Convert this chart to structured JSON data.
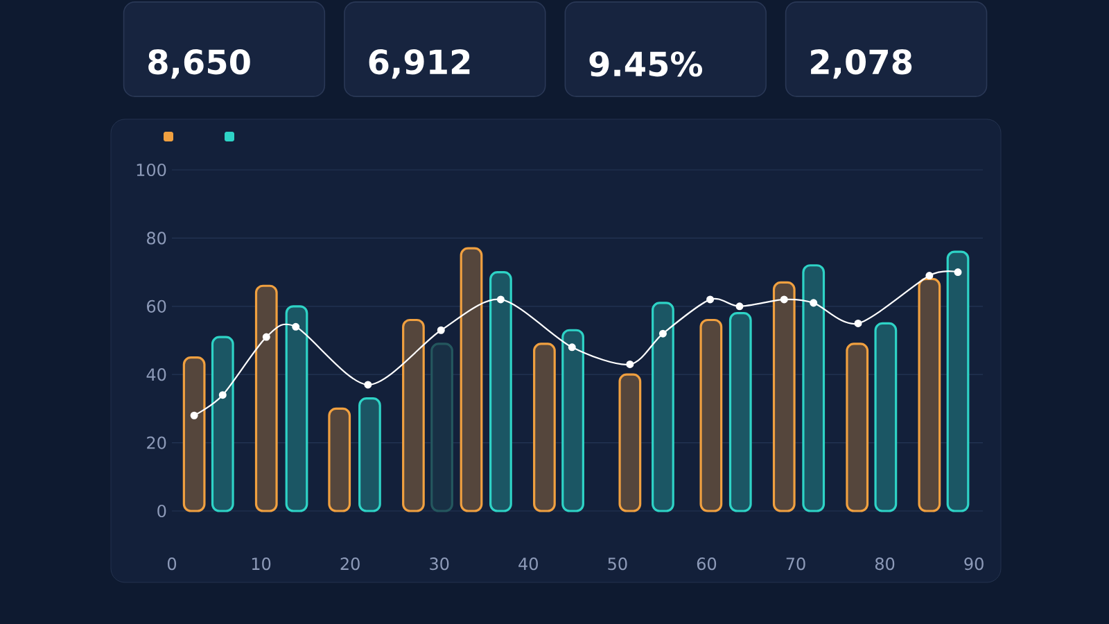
{
  "chart_data": [
    {
      "type": "other",
      "annotations": [
        "8,650",
        "6,912",
        "9.45%",
        "2,078"
      ]
    },
    {
      "type": "bar",
      "xlim": [
        0,
        91
      ],
      "ylim": [
        0,
        100
      ],
      "xticks": [
        0,
        10,
        20,
        30,
        40,
        50,
        60,
        70,
        80,
        90
      ],
      "yticks": [
        0,
        20,
        40,
        60,
        80,
        100
      ],
      "grid": "y",
      "series": [
        {
          "type": "bar",
          "color": "#f0a040",
          "x": [
            2.5,
            10.6,
            18.8,
            27.1,
            33.6,
            41.8,
            51.4,
            60.5,
            68.7,
            76.9,
            85.0
          ],
          "values": [
            45,
            66,
            30,
            56,
            77,
            49,
            40,
            56,
            67,
            49,
            68
          ]
        },
        {
          "type": "bar",
          "colors": [
            "#2ed3c6",
            "#2ed3c6",
            "#2ed3c6",
            "#24575e",
            "#2ed3c6",
            "#2ed3c6",
            "#2ed3c6",
            "#2ed3c6",
            "#2ed3c6",
            "#2ed3c6",
            "#2ed3c6"
          ],
          "x": [
            5.7,
            14.0,
            22.2,
            30.3,
            36.9,
            45.0,
            55.1,
            63.8,
            72.0,
            80.1,
            88.2
          ],
          "values": [
            51,
            60,
            33,
            49,
            70,
            53,
            61,
            58,
            72,
            55,
            76
          ]
        },
        {
          "type": "line",
          "color": "#ffffff",
          "marker": "circle",
          "x": [
            2.5,
            5.7,
            10.6,
            13.9,
            22.0,
            30.2,
            36.9,
            44.9,
            51.4,
            55.1,
            60.4,
            63.7,
            68.7,
            72.0,
            77.0,
            85.0,
            88.2
          ],
          "values": [
            28,
            34,
            51,
            54,
            37,
            53,
            62,
            48,
            43,
            52,
            62,
            60,
            62,
            61,
            55,
            69,
            70
          ]
        }
      ]
    }
  ]
}
